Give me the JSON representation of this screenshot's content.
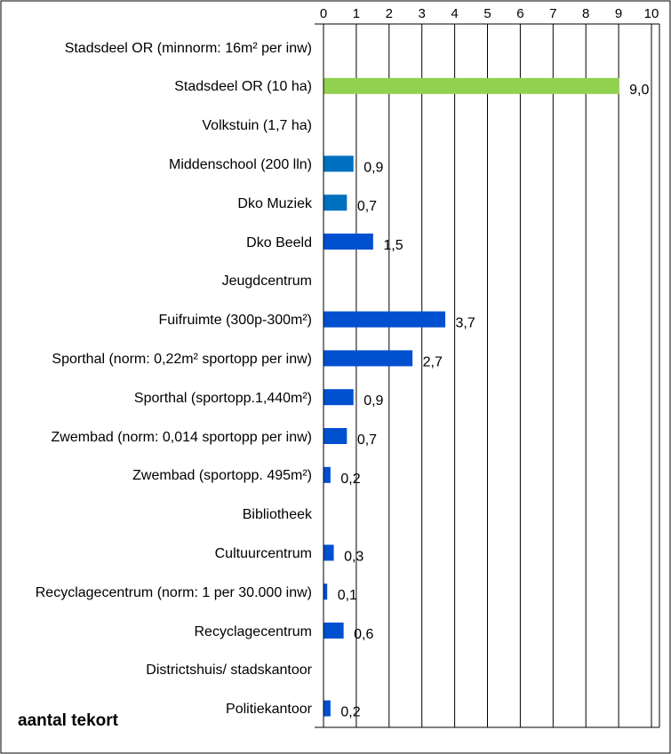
{
  "chart_data": {
    "type": "bar",
    "orientation": "horizontal",
    "title": "",
    "xlabel": "",
    "ylabel": "",
    "xlim": [
      0,
      10
    ],
    "x_ticks": [
      "0",
      "1",
      "2",
      "3",
      "4",
      "5",
      "6",
      "7",
      "8",
      "9",
      "10"
    ],
    "tick_position": "top",
    "grid": true,
    "footer_label": "aantal tekort",
    "categories": [
      "Stadsdeel OR (minnorm: 16m² per inw)",
      "Stadsdeel OR (10 ha)",
      "Volkstuin (1,7 ha)",
      "Middenschool (200 lln)",
      "Dko Muziek",
      "Dko Beeld",
      "Jeugdcentrum",
      "Fuifruimte (300p-300m²)",
      "Sporthal (norm: 0,22m² sportopp per inw)",
      "Sporthal (sportopp.1,440m²)",
      "Zwembad (norm: 0,014 sportopp per inw)",
      "Zwembad (sportopp. 495m²)",
      "Bibliotheek",
      "Cultuurcentrum",
      "Recyclagecentrum (norm: 1 per 30.000 inw)",
      "Recyclagecentrum",
      "Districtshuis/ stadskantoor",
      "Politiekantoor"
    ],
    "values": [
      null,
      9.0,
      null,
      0.9,
      0.7,
      1.5,
      null,
      3.7,
      2.7,
      0.9,
      0.7,
      0.2,
      null,
      0.3,
      0.1,
      0.6,
      null,
      0.2
    ],
    "value_labels": [
      "",
      "9,0",
      "",
      "0,9",
      "0,7",
      "1,5",
      "",
      "3,7",
      "2,7",
      "0,9",
      "0,7",
      "0,2",
      "",
      "0,3",
      "0,1",
      "0,6",
      "",
      "0,2"
    ],
    "bar_colors": [
      "",
      "#92D050",
      "",
      "#0070C0",
      "#0070C0",
      "#0050D0",
      "",
      "#0050D0",
      "#0050D0",
      "#0050D0",
      "#0050D0",
      "#0050D0",
      "",
      "#0050D0",
      "#0050D0",
      "#0050D0",
      "",
      "#0050D0"
    ]
  }
}
